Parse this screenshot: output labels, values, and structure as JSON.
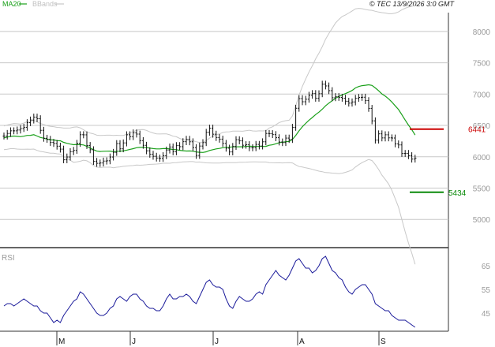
{
  "header": {
    "ma_label": "MA20",
    "bb_label": "BBands",
    "date_text": "© TEC 13/9/2026 3:0 GMT"
  },
  "colors": {
    "ma": "#1aa01a",
    "bands": "#c8c8c8",
    "candles": "#111111",
    "resistance": "#cc0000",
    "support": "#0a8a0a",
    "rsi": "#1a1a9a",
    "grid": "#c8c8c8",
    "axis_text": "#9a9a9a"
  },
  "levels": {
    "resistance_label": "6441",
    "support_label": "5434"
  },
  "rsi_panel": {
    "label": "RSI"
  },
  "chart_data": [
    {
      "type": "candlestick",
      "ylim": [
        4550,
        8300
      ],
      "y_ticks": [
        5000,
        5500,
        6000,
        6500,
        7000,
        7500,
        8000
      ],
      "y_tick_labels": [
        "5000",
        "5500",
        "6000",
        "6500",
        "7000",
        "7500",
        "8000"
      ],
      "month_ticks": [
        "M",
        "J",
        "J",
        "A",
        "S"
      ],
      "grid": true,
      "close": [
        6330,
        6372,
        6414,
        6414,
        6427,
        6451,
        6470,
        6544,
        6586,
        6633,
        6607,
        6422,
        6295,
        6278,
        6229,
        6213,
        6169,
        6122,
        5952,
        5996,
        6081,
        6102,
        6214,
        6352,
        6350,
        6180,
        6112,
        5926,
        5895,
        5901,
        5931,
        5936,
        5996,
        6070,
        6210,
        6127,
        6221,
        6351,
        6321,
        6381,
        6362,
        6258,
        6183,
        6095,
        6040,
        6008,
        5979,
        5974,
        6017,
        6107,
        6156,
        6079,
        6178,
        6161,
        6241,
        6278,
        6239,
        6146,
        6021,
        6171,
        6226,
        6390,
        6457,
        6360,
        6307,
        6281,
        6213,
        6137,
        6077,
        6165,
        6272,
        6254,
        6184,
        6193,
        6144,
        6145,
        6197,
        6172,
        6239,
        6372,
        6369,
        6354,
        6304,
        6236,
        6226,
        6298,
        6276,
        6470,
        6774,
        6928,
        6878,
        6918,
        6981,
        7008,
        6934,
        7006,
        7158,
        7130,
        7055,
        6942,
        6960,
        6947,
        6934,
        6886,
        6856,
        6875,
        6932,
        6947,
        6950,
        6896,
        6772,
        6573,
        6266,
        6366,
        6301,
        6351,
        6302,
        6299,
        6206,
        6189,
        6053,
        6053,
        6017,
        5963,
        5977
      ],
      "ma20": [
        6302,
        6314,
        6324,
        6330,
        6325,
        6320,
        6328,
        6341,
        6342,
        6352,
        6330,
        6308,
        6297,
        6281,
        6270,
        6269,
        6258,
        6255,
        6230,
        6215,
        6202,
        6192,
        6197,
        6195,
        6188,
        6166,
        6141,
        6113,
        6090,
        6084,
        6088,
        6089,
        6090,
        6082,
        6088,
        6089,
        6094,
        6105,
        6118,
        6129,
        6145,
        6149,
        6151,
        6146,
        6138,
        6131,
        6125,
        6126,
        6131,
        6131,
        6124,
        6116,
        6113,
        6103,
        6096,
        6092,
        6093,
        6089,
        6077,
        6072,
        6069,
        6079,
        6100,
        6113,
        6126,
        6133,
        6145,
        6151,
        6152,
        6158,
        6158,
        6160,
        6160,
        6165,
        6170,
        6166,
        6164,
        6165,
        6165,
        6166,
        6183,
        6191,
        6207,
        6225,
        6233,
        6240,
        6244,
        6276,
        6341,
        6414,
        6479,
        6532,
        6583,
        6626,
        6673,
        6712,
        6759,
        6812,
        6856,
        6894,
        6935,
        6961,
        6988,
        7008,
        7032,
        7058,
        7098,
        7121,
        7135,
        7141,
        7149,
        7138,
        7098,
        7053,
        7003,
        6967,
        6924,
        6873,
        6812,
        6753,
        6672,
        6586,
        6506,
        6432,
        6347
      ],
      "bb_upper": [
        6491,
        6507,
        6519,
        6531,
        6527,
        6521,
        6537,
        6560,
        6564,
        6581,
        6559,
        6531,
        6516,
        6496,
        6484,
        6480,
        6469,
        6467,
        6458,
        6458,
        6460,
        6472,
        6476,
        6462,
        6430,
        6396,
        6377,
        6366,
        6345,
        6339,
        6342,
        6344,
        6345,
        6340,
        6343,
        6339,
        6341,
        6358,
        6379,
        6398,
        6422,
        6433,
        6434,
        6420,
        6397,
        6380,
        6366,
        6363,
        6366,
        6364,
        6351,
        6328,
        6319,
        6293,
        6274,
        6264,
        6263,
        6255,
        6240,
        6228,
        6229,
        6255,
        6298,
        6327,
        6352,
        6366,
        6387,
        6397,
        6399,
        6410,
        6409,
        6409,
        6407,
        6416,
        6424,
        6413,
        6410,
        6414,
        6413,
        6415,
        6459,
        6478,
        6511,
        6546,
        6564,
        6576,
        6583,
        6651,
        6812,
        6984,
        7122,
        7241,
        7353,
        7452,
        7562,
        7653,
        7756,
        7876,
        7966,
        8049,
        8135,
        8190,
        8238,
        8264,
        8294,
        8326,
        8360,
        8368,
        8363,
        8350,
        8341,
        8337,
        8321,
        8309,
        8300,
        8294,
        8283,
        8283,
        8292,
        8311,
        8345,
        8369,
        8389,
        8402,
        8409
      ],
      "bb_lower": [
        6113,
        6121,
        6129,
        6129,
        6123,
        6119,
        6119,
        6122,
        6120,
        6123,
        6101,
        6085,
        6078,
        6066,
        6056,
        6058,
        6047,
        6043,
        6002,
        5972,
        5944,
        5912,
        5918,
        5928,
        5946,
        5936,
        5905,
        5860,
        5835,
        5829,
        5834,
        5834,
        5835,
        5824,
        5833,
        5839,
        5847,
        5852,
        5857,
        5860,
        5868,
        5865,
        5868,
        5872,
        5879,
        5882,
        5884,
        5889,
        5896,
        5898,
        5897,
        5904,
        5907,
        5913,
        5918,
        5920,
        5923,
        5923,
        5914,
        5916,
        5909,
        5903,
        5902,
        5899,
        5900,
        5900,
        5903,
        5905,
        5905,
        5906,
        5907,
        5911,
        5913,
        5914,
        5916,
        5919,
        5918,
        5916,
        5917,
        5917,
        5907,
        5904,
        5903,
        5904,
        5902,
        5904,
        5905,
        5901,
        5870,
        5844,
        5836,
        5823,
        5813,
        5800,
        5784,
        5771,
        5762,
        5748,
        5746,
        5739,
        5735,
        5732,
        5738,
        5752,
        5770,
        5790,
        5836,
        5874,
        5907,
        5932,
        5957,
        5939,
        5875,
        5797,
        5706,
        5640,
        5565,
        5463,
        5332,
        5195,
        4999,
        4803,
        4623,
        4462,
        4285
      ],
      "resistance": 6441,
      "support": 5434
    },
    {
      "type": "line",
      "title": "RSI",
      "ylim": [
        38,
        72
      ],
      "y_ticks": [
        45,
        55,
        65
      ],
      "y_tick_labels": [
        "45",
        "55",
        "65"
      ],
      "values": [
        48,
        49,
        49,
        48,
        49,
        50,
        51,
        50,
        49,
        48,
        48,
        46,
        45,
        45,
        43,
        41,
        42,
        41,
        44,
        46,
        48,
        50,
        51,
        54,
        53,
        51,
        49,
        47,
        45,
        44,
        44,
        45,
        47,
        48,
        51,
        52,
        51,
        50,
        52,
        53,
        53,
        51,
        50,
        48,
        47,
        47,
        46,
        46,
        48,
        51,
        53,
        51,
        51,
        52,
        52,
        53,
        52,
        50,
        49,
        52,
        55,
        58,
        59,
        57,
        56,
        56,
        55,
        51,
        48,
        47,
        50,
        52,
        51,
        50,
        50,
        51,
        53,
        54,
        53,
        57,
        59,
        61,
        63,
        61,
        60,
        59,
        61,
        64,
        67,
        68,
        66,
        64,
        64,
        62,
        63,
        65,
        68,
        69,
        66,
        63,
        62,
        60,
        59,
        56,
        54,
        53,
        55,
        56,
        57,
        57,
        55,
        53,
        49,
        48,
        47,
        46,
        46,
        44,
        43,
        42,
        42,
        42,
        41,
        40,
        39
      ]
    }
  ]
}
